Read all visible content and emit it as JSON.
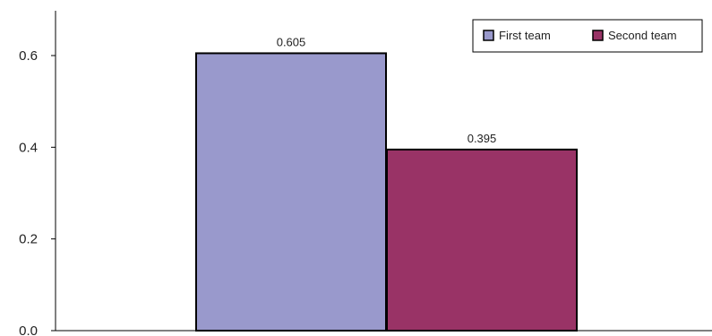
{
  "chart_data": {
    "type": "bar",
    "categories": [
      ""
    ],
    "series": [
      {
        "name": "First team",
        "values": [
          0.605
        ],
        "color": "#9999cc",
        "data_label": "0.605"
      },
      {
        "name": "Second team",
        "values": [
          0.395
        ],
        "color": "#993366",
        "data_label": "0.395"
      }
    ],
    "yticks": [
      "0.0",
      "0.2",
      "0.4",
      "0.6"
    ],
    "ylim": [
      0,
      0.7
    ],
    "xlabel": "",
    "ylabel": "",
    "grid": false,
    "legend_position": "top-right"
  }
}
